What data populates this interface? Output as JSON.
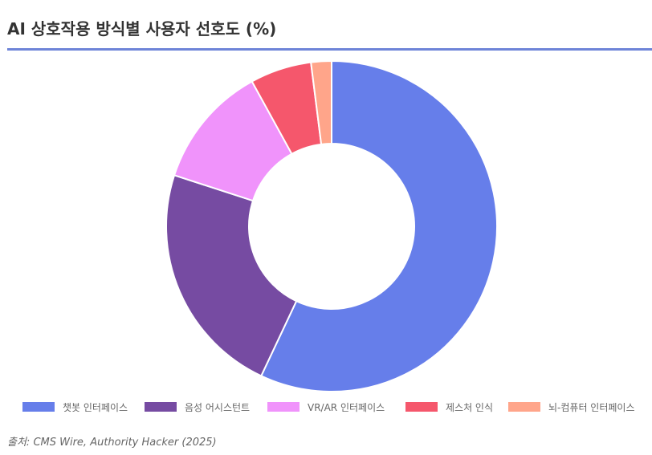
{
  "page": {
    "title": "AI 상호작용 방식별 사용자 선호도 (%)",
    "source_prefix": "출처:",
    "source_text": " CMS Wire, Authority Hacker (2025)",
    "accent_color": "#6e84d8"
  },
  "chart_data": {
    "type": "pie",
    "subtype": "doughnut",
    "title": "AI 상호작용 방식별 사용자 선호도 (%)",
    "unit": "%",
    "legend_position": "bottom",
    "categories": [
      "챗봇 인터페이스",
      "음성 어시스턴트",
      "VR/AR 인터페이스",
      "제스처 인식",
      "뇌-컴퓨터 인터페이스"
    ],
    "values": [
      57,
      23,
      12,
      6,
      2
    ],
    "colors": [
      "#667eea",
      "#764ba2",
      "#f093fb",
      "#f5576c",
      "#ffa58a"
    ]
  }
}
